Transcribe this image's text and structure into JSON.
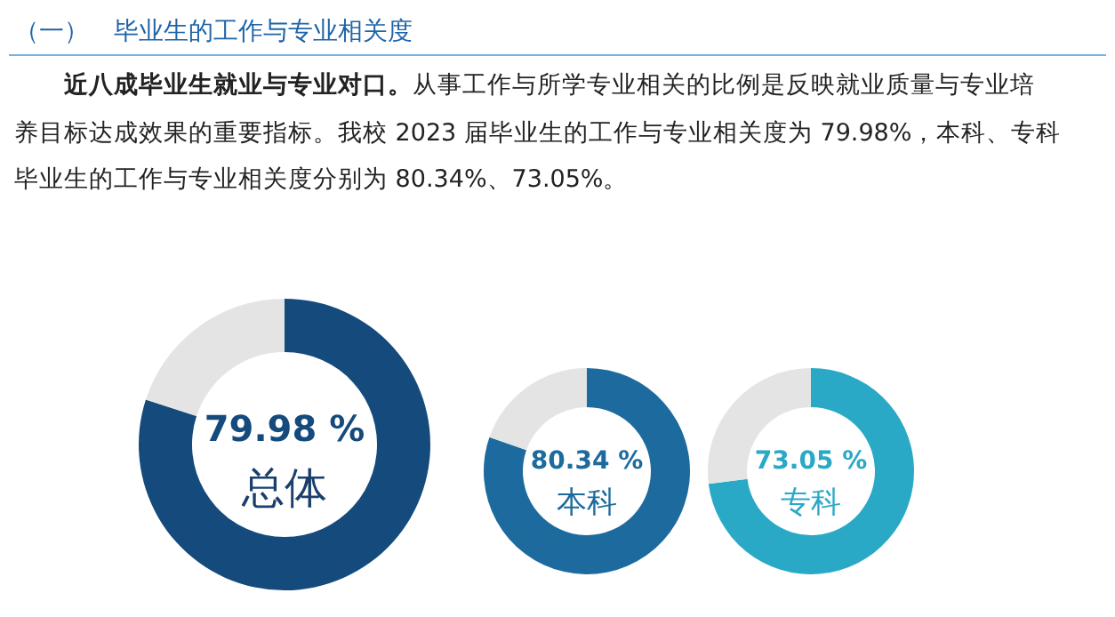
{
  "chart_data": [
    {
      "type": "other",
      "title": "（一）　毕业生的工作与专业相关度",
      "annotations": [
        "近八成毕业生就业与专业对口。",
        "从事工作与所学专业相关的比例是反映就业质量与专业培",
        "养目标达成效果的重要指标。我校 2023 届毕业生的工作与专业相关度为 79.98%，本科、专科",
        "毕业生的工作与专业相关度分别为 80.34%、73.05%。"
      ]
    },
    {
      "type": "donut",
      "title": "总体",
      "categories": [
        null,
        null
      ],
      "values": [
        79.98,
        20.02
      ],
      "colors": [
        "#154b7c",
        "#e4e4e4"
      ],
      "value_labels": [
        "79.98 %",
        null
      ]
    },
    {
      "type": "donut",
      "title": "本科",
      "categories": [
        null,
        null
      ],
      "values": [
        80.34,
        19.66
      ],
      "colors": [
        "#1d6b9e",
        "#e4e4e4"
      ],
      "value_labels": [
        "80.34 %",
        null
      ]
    },
    {
      "type": "donut",
      "title": "专科",
      "categories": [
        null,
        null
      ],
      "values": [
        73.05,
        26.95
      ],
      "colors": [
        "#2aa9c6",
        "#e4e4e4"
      ],
      "value_labels": [
        "73.05 %",
        null
      ]
    }
  ]
}
